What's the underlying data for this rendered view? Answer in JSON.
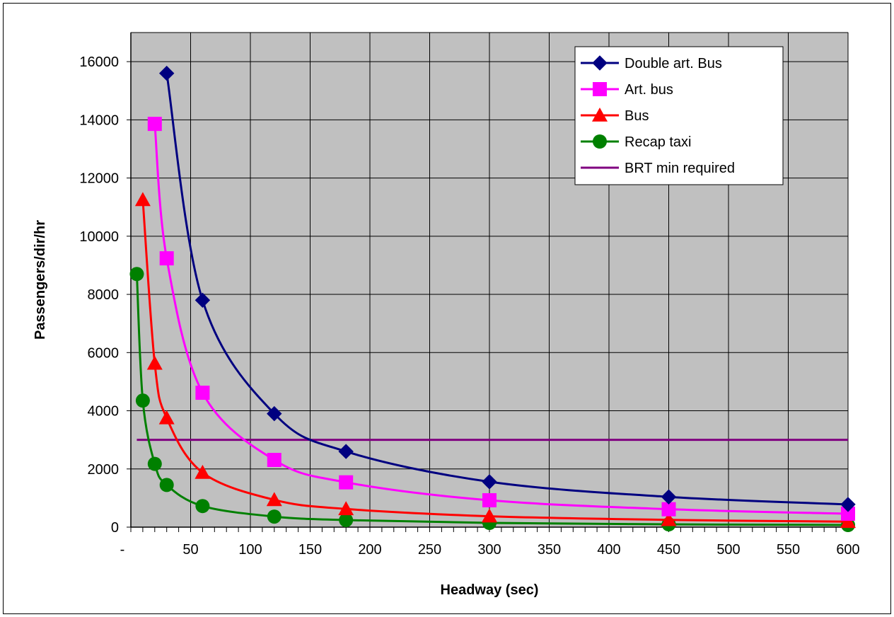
{
  "chart_data": {
    "type": "line",
    "xlabel": "Headway (sec)",
    "ylabel": "Passengers/dir/hr",
    "xlim": [
      0,
      600
    ],
    "ylim": [
      0,
      17000
    ],
    "x_ticks": [
      0,
      50,
      100,
      150,
      200,
      250,
      300,
      350,
      400,
      450,
      500,
      550,
      600
    ],
    "x_tick_labels": [
      "-",
      "50",
      "100",
      "150",
      "200",
      "250",
      "300",
      "350",
      "400",
      "450",
      "500",
      "550",
      "600"
    ],
    "y_ticks": [
      0,
      2000,
      4000,
      6000,
      8000,
      10000,
      12000,
      14000,
      16000
    ],
    "y_tick_labels": [
      "0",
      "2000",
      "4000",
      "6000",
      "8000",
      "10000",
      "12000",
      "14000",
      "16000"
    ],
    "grid": true,
    "plot_background": "#c0c0c0",
    "legend_position": "top-right",
    "series": [
      {
        "name": "Double art. Bus",
        "color": "#000080",
        "marker": "diamond",
        "x": [
          30,
          60,
          120,
          180,
          300,
          450,
          600
        ],
        "y": [
          15600,
          7800,
          3900,
          2600,
          1560,
          1040,
          780
        ]
      },
      {
        "name": "Art. bus",
        "color": "#ff00ff",
        "marker": "square",
        "x": [
          20,
          30,
          60,
          120,
          180,
          300,
          450,
          600
        ],
        "y": [
          13860,
          9240,
          4620,
          2310,
          1540,
          924,
          616,
          462
        ]
      },
      {
        "name": "Bus",
        "color": "#ff0000",
        "marker": "triangle",
        "x": [
          10,
          20,
          30,
          60,
          120,
          180,
          300,
          450,
          600
        ],
        "y": [
          11250,
          5625,
          3750,
          1875,
          938,
          625,
          375,
          250,
          188
        ]
      },
      {
        "name": "Recap taxi",
        "color": "#008000",
        "marker": "circle",
        "x": [
          5,
          10,
          20,
          30,
          60,
          120,
          180,
          300,
          450,
          600
        ],
        "y": [
          8700,
          4350,
          2175,
          1450,
          725,
          363,
          242,
          145,
          97,
          73
        ]
      },
      {
        "name": "BRT min required",
        "color": "#800080",
        "marker": "none",
        "x": [
          5,
          600
        ],
        "y": [
          3000,
          3000
        ]
      }
    ]
  }
}
